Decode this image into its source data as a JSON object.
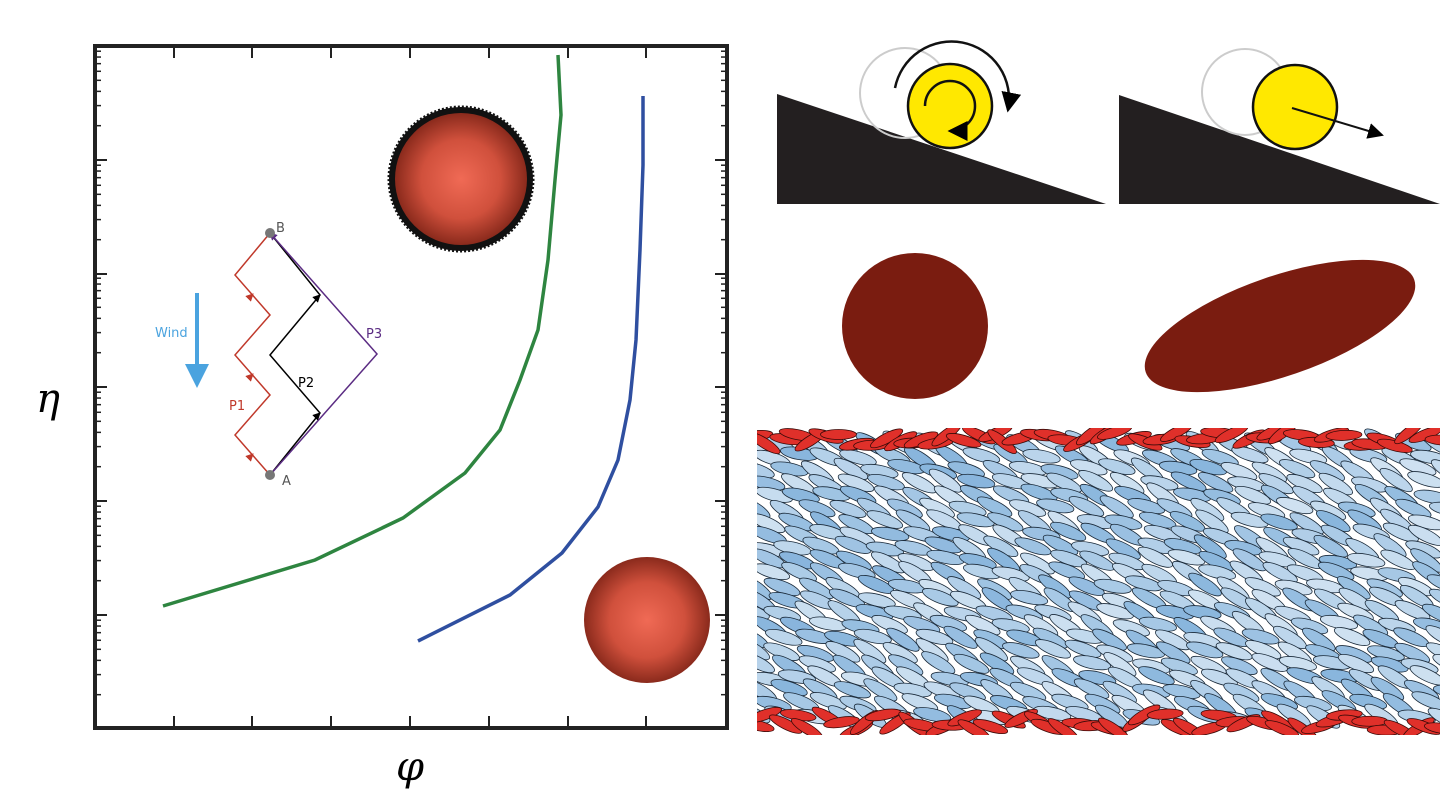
{
  "axes": {
    "x_label": "φ",
    "y_label": "η"
  },
  "inset": {
    "wind": "Wind",
    "paths": [
      "P1",
      "P2",
      "P3"
    ],
    "points": [
      "A",
      "B"
    ]
  }
}
